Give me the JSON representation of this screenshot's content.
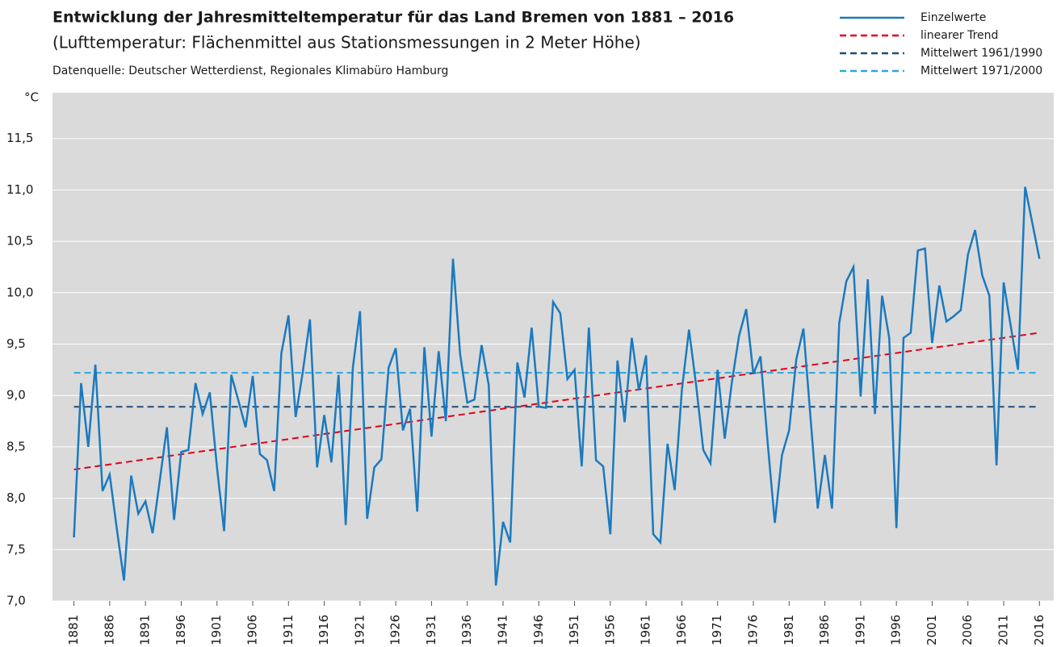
{
  "chart_data": {
    "type": "line",
    "title": "Entwicklung der Jahresmitteltemperatur für das Land Bremen von 1881 – 2016",
    "subtitle": "(Lufttemperatur: Flächenmittel aus Stationsmessungen in 2 Meter Höhe)",
    "source": "Datenquelle: Deutscher Wetterdienst, Regionales Klimabüro Hamburg",
    "ylabel": "°C",
    "x": [
      1881,
      1882,
      1883,
      1884,
      1885,
      1886,
      1887,
      1888,
      1889,
      1890,
      1891,
      1892,
      1893,
      1894,
      1895,
      1896,
      1897,
      1898,
      1899,
      1900,
      1901,
      1902,
      1903,
      1904,
      1905,
      1906,
      1907,
      1908,
      1909,
      1910,
      1911,
      1912,
      1913,
      1914,
      1915,
      1916,
      1917,
      1918,
      1919,
      1920,
      1921,
      1922,
      1923,
      1924,
      1925,
      1926,
      1927,
      1928,
      1929,
      1930,
      1931,
      1932,
      1933,
      1934,
      1935,
      1936,
      1937,
      1938,
      1939,
      1940,
      1941,
      1942,
      1943,
      1944,
      1945,
      1946,
      1947,
      1948,
      1949,
      1950,
      1951,
      1952,
      1953,
      1954,
      1955,
      1956,
      1957,
      1958,
      1959,
      1960,
      1961,
      1962,
      1963,
      1964,
      1965,
      1966,
      1967,
      1968,
      1969,
      1970,
      1971,
      1972,
      1973,
      1974,
      1975,
      1976,
      1977,
      1978,
      1979,
      1980,
      1981,
      1982,
      1983,
      1984,
      1985,
      1986,
      1987,
      1988,
      1989,
      1990,
      1991,
      1992,
      1993,
      1994,
      1995,
      1996,
      1997,
      1998,
      1999,
      2000,
      2001,
      2002,
      2003,
      2004,
      2005,
      2006,
      2007,
      2008,
      2009,
      2010,
      2011,
      2012,
      2013,
      2014,
      2015,
      2016
    ],
    "series": [
      {
        "name": "Einzelwerte",
        "color": "#1a7abf",
        "dash": false,
        "values": [
          7.62,
          9.12,
          8.5,
          9.3,
          8.07,
          8.23,
          7.7,
          7.2,
          8.22,
          7.85,
          7.97,
          7.66,
          8.17,
          8.69,
          7.79,
          8.45,
          8.47,
          9.12,
          8.82,
          9.03,
          8.3,
          7.68,
          9.2,
          8.95,
          8.69,
          9.19,
          8.43,
          8.37,
          8.07,
          9.41,
          9.78,
          8.79,
          9.23,
          9.74,
          8.3,
          8.81,
          8.35,
          9.2,
          7.74,
          9.27,
          9.82,
          7.8,
          8.3,
          8.38,
          9.27,
          9.46,
          8.66,
          8.87,
          7.87,
          9.47,
          8.6,
          9.43,
          8.75,
          10.33,
          9.4,
          8.93,
          8.96,
          9.49,
          9.1,
          7.15,
          7.77,
          7.57,
          9.32,
          8.98,
          9.66,
          8.89,
          8.88,
          9.91,
          9.8,
          9.16,
          9.25,
          8.31,
          9.66,
          8.37,
          8.31,
          7.65,
          9.34,
          8.74,
          9.56,
          9.05,
          9.39,
          7.65,
          7.57,
          8.53,
          8.08,
          9.05,
          9.64,
          9.1,
          8.47,
          8.34,
          9.25,
          8.58,
          9.13,
          9.58,
          9.84,
          9.21,
          9.38,
          8.54,
          7.76,
          8.42,
          8.66,
          9.35,
          9.65,
          8.78,
          7.9,
          8.42,
          7.9,
          9.7,
          10.11,
          10.25,
          8.99,
          10.13,
          8.82,
          9.97,
          9.56,
          7.71,
          9.56,
          9.61,
          10.41,
          10.43,
          9.51,
          10.07,
          9.72,
          9.77,
          9.83,
          10.37,
          10.61,
          10.17,
          9.97,
          8.32,
          10.1,
          9.67,
          9.25,
          11.03,
          10.68,
          10.33
        ]
      },
      {
        "name": "linearer Trend",
        "color": "#e2001a",
        "dash": true,
        "x": [
          1881,
          2016
        ],
        "values": [
          8.28,
          9.61
        ]
      },
      {
        "name": "Mittelwert 1961/1990",
        "color": "#1f4e79",
        "dash": true,
        "x": [
          1881,
          2016
        ],
        "values": [
          8.89,
          8.89
        ]
      },
      {
        "name": "Mittelwert 1971/2000",
        "color": "#2aa7df",
        "dash": true,
        "x": [
          1881,
          2016
        ],
        "values": [
          9.22,
          9.22
        ]
      }
    ],
    "xlim": [
      1878,
      2018
    ],
    "xticks": [
      1881,
      1886,
      1891,
      1896,
      1901,
      1906,
      1911,
      1916,
      1921,
      1926,
      1931,
      1936,
      1941,
      1946,
      1951,
      1956,
      1961,
      1966,
      1971,
      1976,
      1981,
      1986,
      1991,
      1996,
      2001,
      2006,
      2011,
      2016
    ],
    "ylim": [
      7,
      12
    ],
    "yticks": [
      {
        "value": 7,
        "label": "7,0"
      },
      {
        "value": 7.5,
        "label": "7,5"
      },
      {
        "value": 8,
        "label": "8,0"
      },
      {
        "value": 8.5,
        "label": "8,5"
      },
      {
        "value": 9,
        "label": "9,0"
      },
      {
        "value": 9.5,
        "label": "9,5"
      },
      {
        "value": 10,
        "label": "10,0"
      },
      {
        "value": 10.5,
        "label": "10,5"
      },
      {
        "value": 11,
        "label": "11,0"
      },
      {
        "value": 11.5,
        "label": "11,5"
      }
    ],
    "grid": true
  }
}
